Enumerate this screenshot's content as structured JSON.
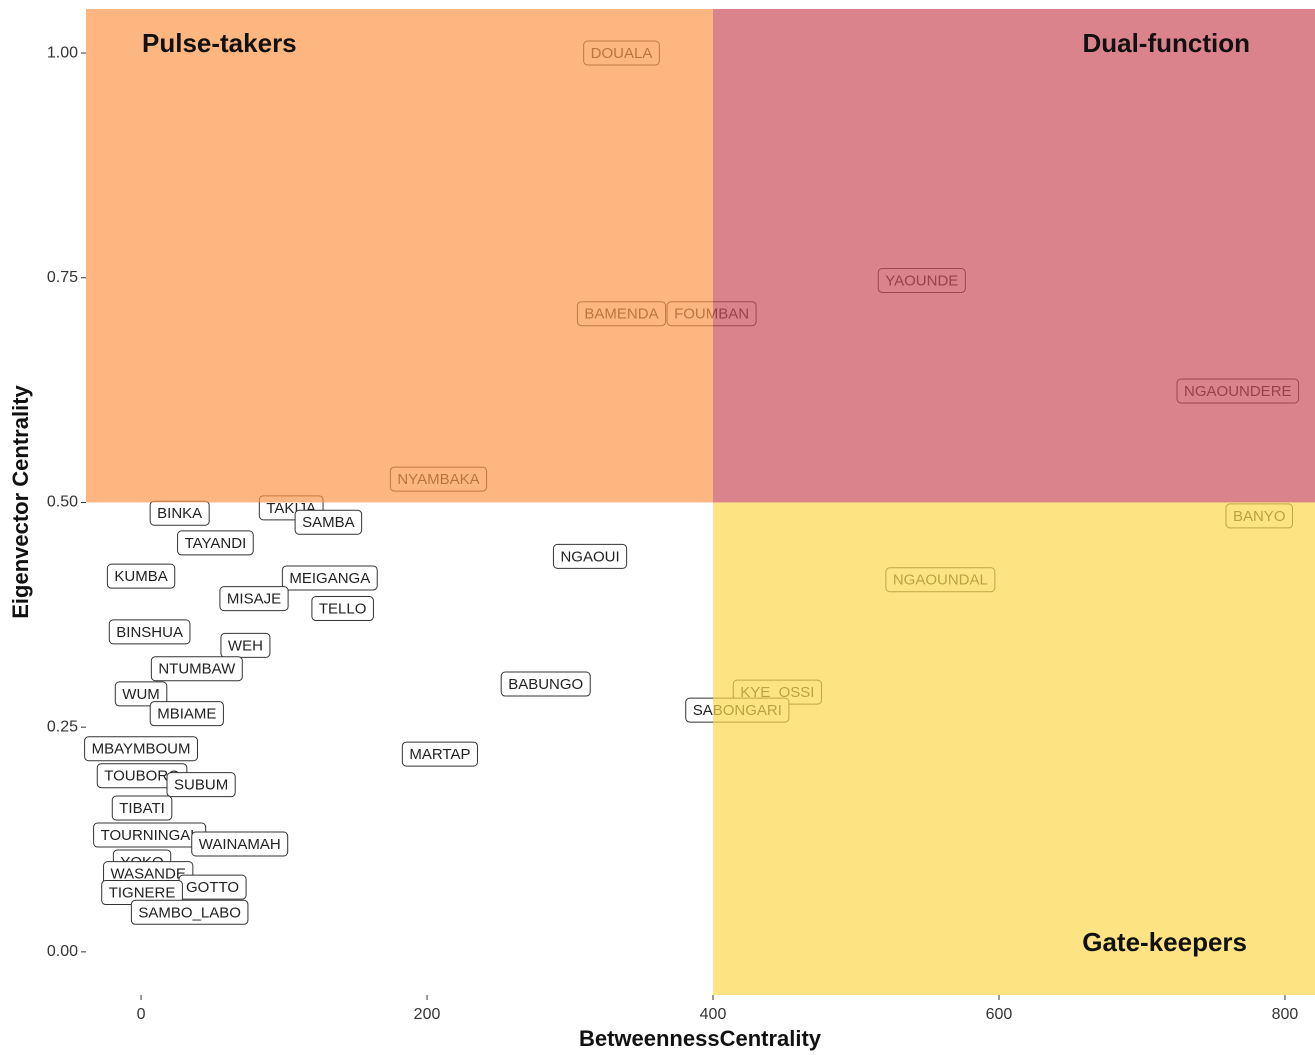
{
  "chart_data": {
    "type": "scatter",
    "x_label": "BetweennessCentrality",
    "y_label": "Eigenvector Centrality",
    "xlim": [
      -38.5,
      821
    ],
    "ylim": [
      -0.048,
      1.049
    ],
    "xticks": [
      0,
      200,
      400,
      600,
      800
    ],
    "yticks": [
      {
        "value": 0,
        "label": "0.00"
      },
      {
        "value": 0.25,
        "label": "0.25"
      },
      {
        "value": 0.5,
        "label": "0.50"
      },
      {
        "value": 0.75,
        "label": "0.75"
      },
      {
        "value": 1,
        "label": "1.00"
      }
    ],
    "x_split": 400,
    "y_split": 0.5,
    "quadrants": {
      "top_left": {
        "label": "Pulse-takers",
        "color": "#fc9748"
      },
      "top_right": {
        "label": "Dual-function",
        "color": "#cc4e5b"
      },
      "bottom_right": {
        "label": "Gate-keepers",
        "color": "#fed74e"
      }
    },
    "labels": [
      "DOUALA",
      "YAOUNDE",
      "BAMENDA",
      "FOUMBAN",
      "NGAOUNDERE",
      "NYAMBAKA",
      "BANYO",
      "NGAOUNDAL",
      "NGAOUI",
      "BINKA",
      "TAKIJA",
      "SAMBA",
      "TAYANDI",
      "KUMBA",
      "MEIGANGA",
      "MISAJE",
      "TELLO",
      "BINSHUA",
      "WEH",
      "NTUMBAW",
      "WUM",
      "BABUNGO",
      "KYE_OSSI",
      "SABONGARI",
      "MBIAME",
      "MBAYMBOUM",
      "MARTAP",
      "TOUBORO",
      "SUBUM",
      "TIBATI",
      "TOURNINGAL",
      "WAINAMAH",
      "YOKO",
      "WASANDE",
      "GOTTO",
      "TIGNERE",
      "SAMBO_LABO"
    ],
    "x": [
      336,
      546,
      336,
      399,
      767,
      208,
      782,
      559,
      314,
      27,
      105,
      131,
      52,
      0,
      132,
      79,
      141,
      6,
      73,
      39,
      0,
      283,
      445,
      417,
      32,
      0,
      209,
      0.7,
      42,
      0.7,
      6,
      69,
      0.7,
      5,
      50,
      0.7,
      34
    ],
    "y": [
      1.0,
      0.747,
      0.71,
      0.71,
      0.624,
      0.526,
      0.485,
      0.414,
      0.44,
      0.488,
      0.494,
      0.478,
      0.455,
      0.418,
      0.416,
      0.393,
      0.382,
      0.356,
      0.341,
      0.315,
      0.287,
      0.298,
      0.289,
      0.269,
      0.265,
      0.226,
      0.22,
      0.196,
      0.186,
      0.16,
      0.13,
      0.12,
      0.1,
      0.087,
      0.072,
      0.066,
      0.044
    ]
  }
}
